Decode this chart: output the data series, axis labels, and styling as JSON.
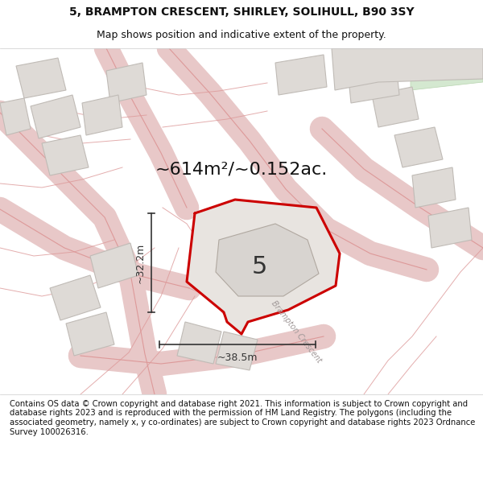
{
  "title_line1": "5, BRAMPTON CRESCENT, SHIRLEY, SOLIHULL, B90 3SY",
  "title_line2": "Map shows position and indicative extent of the property.",
  "area_label": "~614m²/~0.152ac.",
  "dim_vertical": "~32.2m",
  "dim_horizontal": "~38.5m",
  "number_label": "5",
  "street_label": "Brampton Crescent",
  "footer_text": "Contains OS data © Crown copyright and database right 2021. This information is subject to Crown copyright and database rights 2023 and is reproduced with the permission of HM Land Registry. The polygons (including the associated geometry, namely x, y co-ordinates) are subject to Crown copyright and database rights 2023 Ordnance Survey 100026316.",
  "map_bg": "#f0ece8",
  "road_fill": "#e8c8c8",
  "road_line": "#dd9999",
  "boundary_color": "#cc0000",
  "dim_color": "#333333",
  "title_color": "#111111",
  "footer_color": "#111111",
  "building_fill": "#dedad6",
  "building_edge": "#c0bbb6",
  "green_fill": "#d4e8d0",
  "green_edge": "#b8d4b0",
  "fig_width": 6.0,
  "fig_height": 6.25
}
